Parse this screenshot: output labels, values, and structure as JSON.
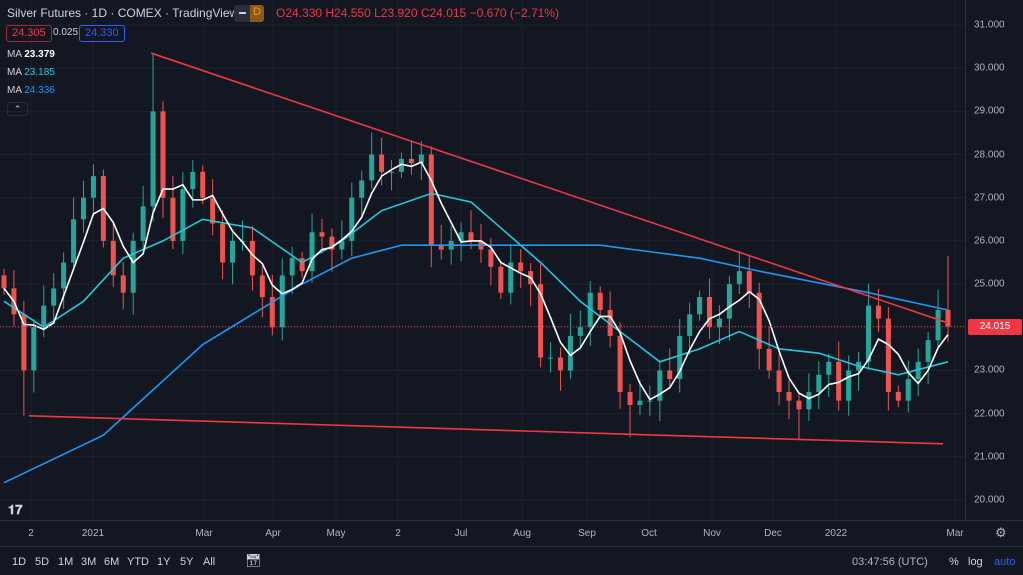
{
  "header": {
    "title": "Silver Futures · 1D · COMEX · TradingView",
    "interval_badge": "D",
    "open": "O24.330",
    "high": "H24.550",
    "low": "L23.920",
    "close": "C24.015",
    "change": "−0.670 (−2.71%)"
  },
  "bid_ask": {
    "bid": "24.305",
    "spread": "0.025",
    "ask": "24.330"
  },
  "indicators": [
    {
      "label": "MA",
      "value": "23.379",
      "color": "#ffffff"
    },
    {
      "label": "MA",
      "value": "23.185",
      "color": "#26c6da"
    },
    {
      "label": "MA",
      "value": "24.336",
      "color": "#2196f3"
    }
  ],
  "colors": {
    "up": "#26a69a",
    "down": "#ef5350",
    "trend": "#f23645",
    "bg": "#131722"
  },
  "chart_data": {
    "type": "candlestick",
    "title": "Silver Futures 1D COMEX",
    "ylim": [
      19.6,
      31.4
    ],
    "yticks": [
      "31.000",
      "30.000",
      "29.000",
      "28.000",
      "27.000",
      "26.000",
      "25.000",
      "24.000",
      "23.000",
      "22.000",
      "21.000",
      "20.000"
    ],
    "xticks": [
      "2",
      "2021",
      "Mar",
      "Apr",
      "May",
      "2",
      "Jul",
      "Aug",
      "Sep",
      "Oct",
      "Nov",
      "Dec",
      "2022",
      "Mar"
    ],
    "last_price": "24.015",
    "closes": [
      24.9,
      24.3,
      23.0,
      24.0,
      24.5,
      24.9,
      25.5,
      26.5,
      27.0,
      27.5,
      26.0,
      25.2,
      24.8,
      26.0,
      26.8,
      29.0,
      27.0,
      26.0,
      27.2,
      27.6,
      27.0,
      26.4,
      25.5,
      26.0,
      26.0,
      25.2,
      24.7,
      24.0,
      25.2,
      25.6,
      25.3,
      26.2,
      26.1,
      25.8,
      26.0,
      27.0,
      27.4,
      28.0,
      27.6,
      27.6,
      27.9,
      27.8,
      28.0,
      25.9,
      25.8,
      26.0,
      26.2,
      26.0,
      25.8,
      25.4,
      24.8,
      25.5,
      25.3,
      25.0,
      23.3,
      23.3,
      23.0,
      23.8,
      24.0,
      24.8,
      24.4,
      23.8,
      22.5,
      22.2,
      22.3,
      22.3,
      23.0,
      22.8,
      23.8,
      24.3,
      24.7,
      24.0,
      24.2,
      25.0,
      25.3,
      24.8,
      23.5,
      23.0,
      22.5,
      22.3,
      22.1,
      22.5,
      22.9,
      23.2,
      22.3,
      23.0,
      23.2,
      24.5,
      24.2,
      22.5,
      22.3,
      22.8,
      23.2,
      23.7,
      24.4,
      24.015
    ],
    "ma_slow": [
      [
        0,
        20.4
      ],
      [
        10,
        21.5
      ],
      [
        20,
        23.6
      ],
      [
        30,
        25.0
      ],
      [
        35,
        25.6
      ],
      [
        40,
        25.9
      ],
      [
        50,
        25.9
      ],
      [
        60,
        25.9
      ],
      [
        70,
        25.6
      ],
      [
        76,
        25.3
      ],
      [
        87,
        24.8
      ],
      [
        95,
        24.4
      ]
    ],
    "ma_mid": [
      [
        0,
        24.6
      ],
      [
        4,
        24.0
      ],
      [
        8,
        24.6
      ],
      [
        12,
        25.6
      ],
      [
        16,
        26.0
      ],
      [
        20,
        26.5
      ],
      [
        25,
        26.3
      ],
      [
        30,
        25.5
      ],
      [
        34,
        26.0
      ],
      [
        38,
        26.7
      ],
      [
        43,
        27.1
      ],
      [
        47,
        26.9
      ],
      [
        50,
        26.3
      ],
      [
        54,
        25.5
      ],
      [
        58,
        24.6
      ],
      [
        62,
        23.9
      ],
      [
        66,
        23.2
      ],
      [
        70,
        23.5
      ],
      [
        74,
        23.9
      ],
      [
        78,
        23.5
      ],
      [
        82,
        23.4
      ],
      [
        86,
        23.1
      ],
      [
        90,
        22.9
      ],
      [
        95,
        23.2
      ]
    ],
    "trendlines": [
      {
        "from": [
          14.8,
          30.35
        ],
        "to": [
          95,
          24.1
        ]
      },
      {
        "from": [
          2.5,
          21.95
        ],
        "to": [
          94.5,
          21.3
        ]
      }
    ]
  },
  "timeaxis": {
    "labels": [
      "2",
      "2021",
      "Mar",
      "Apr",
      "May",
      "2",
      "Jul",
      "Aug",
      "Sep",
      "Oct",
      "Nov",
      "Dec",
      "2022",
      "Mar"
    ]
  },
  "bottom": {
    "ranges": [
      "1D",
      "5D",
      "1M",
      "3M",
      "6M",
      "YTD",
      "1Y",
      "5Y",
      "All"
    ],
    "clock": "03:47:56 (UTC)",
    "percent": "%",
    "log": "log",
    "auto": "auto"
  }
}
